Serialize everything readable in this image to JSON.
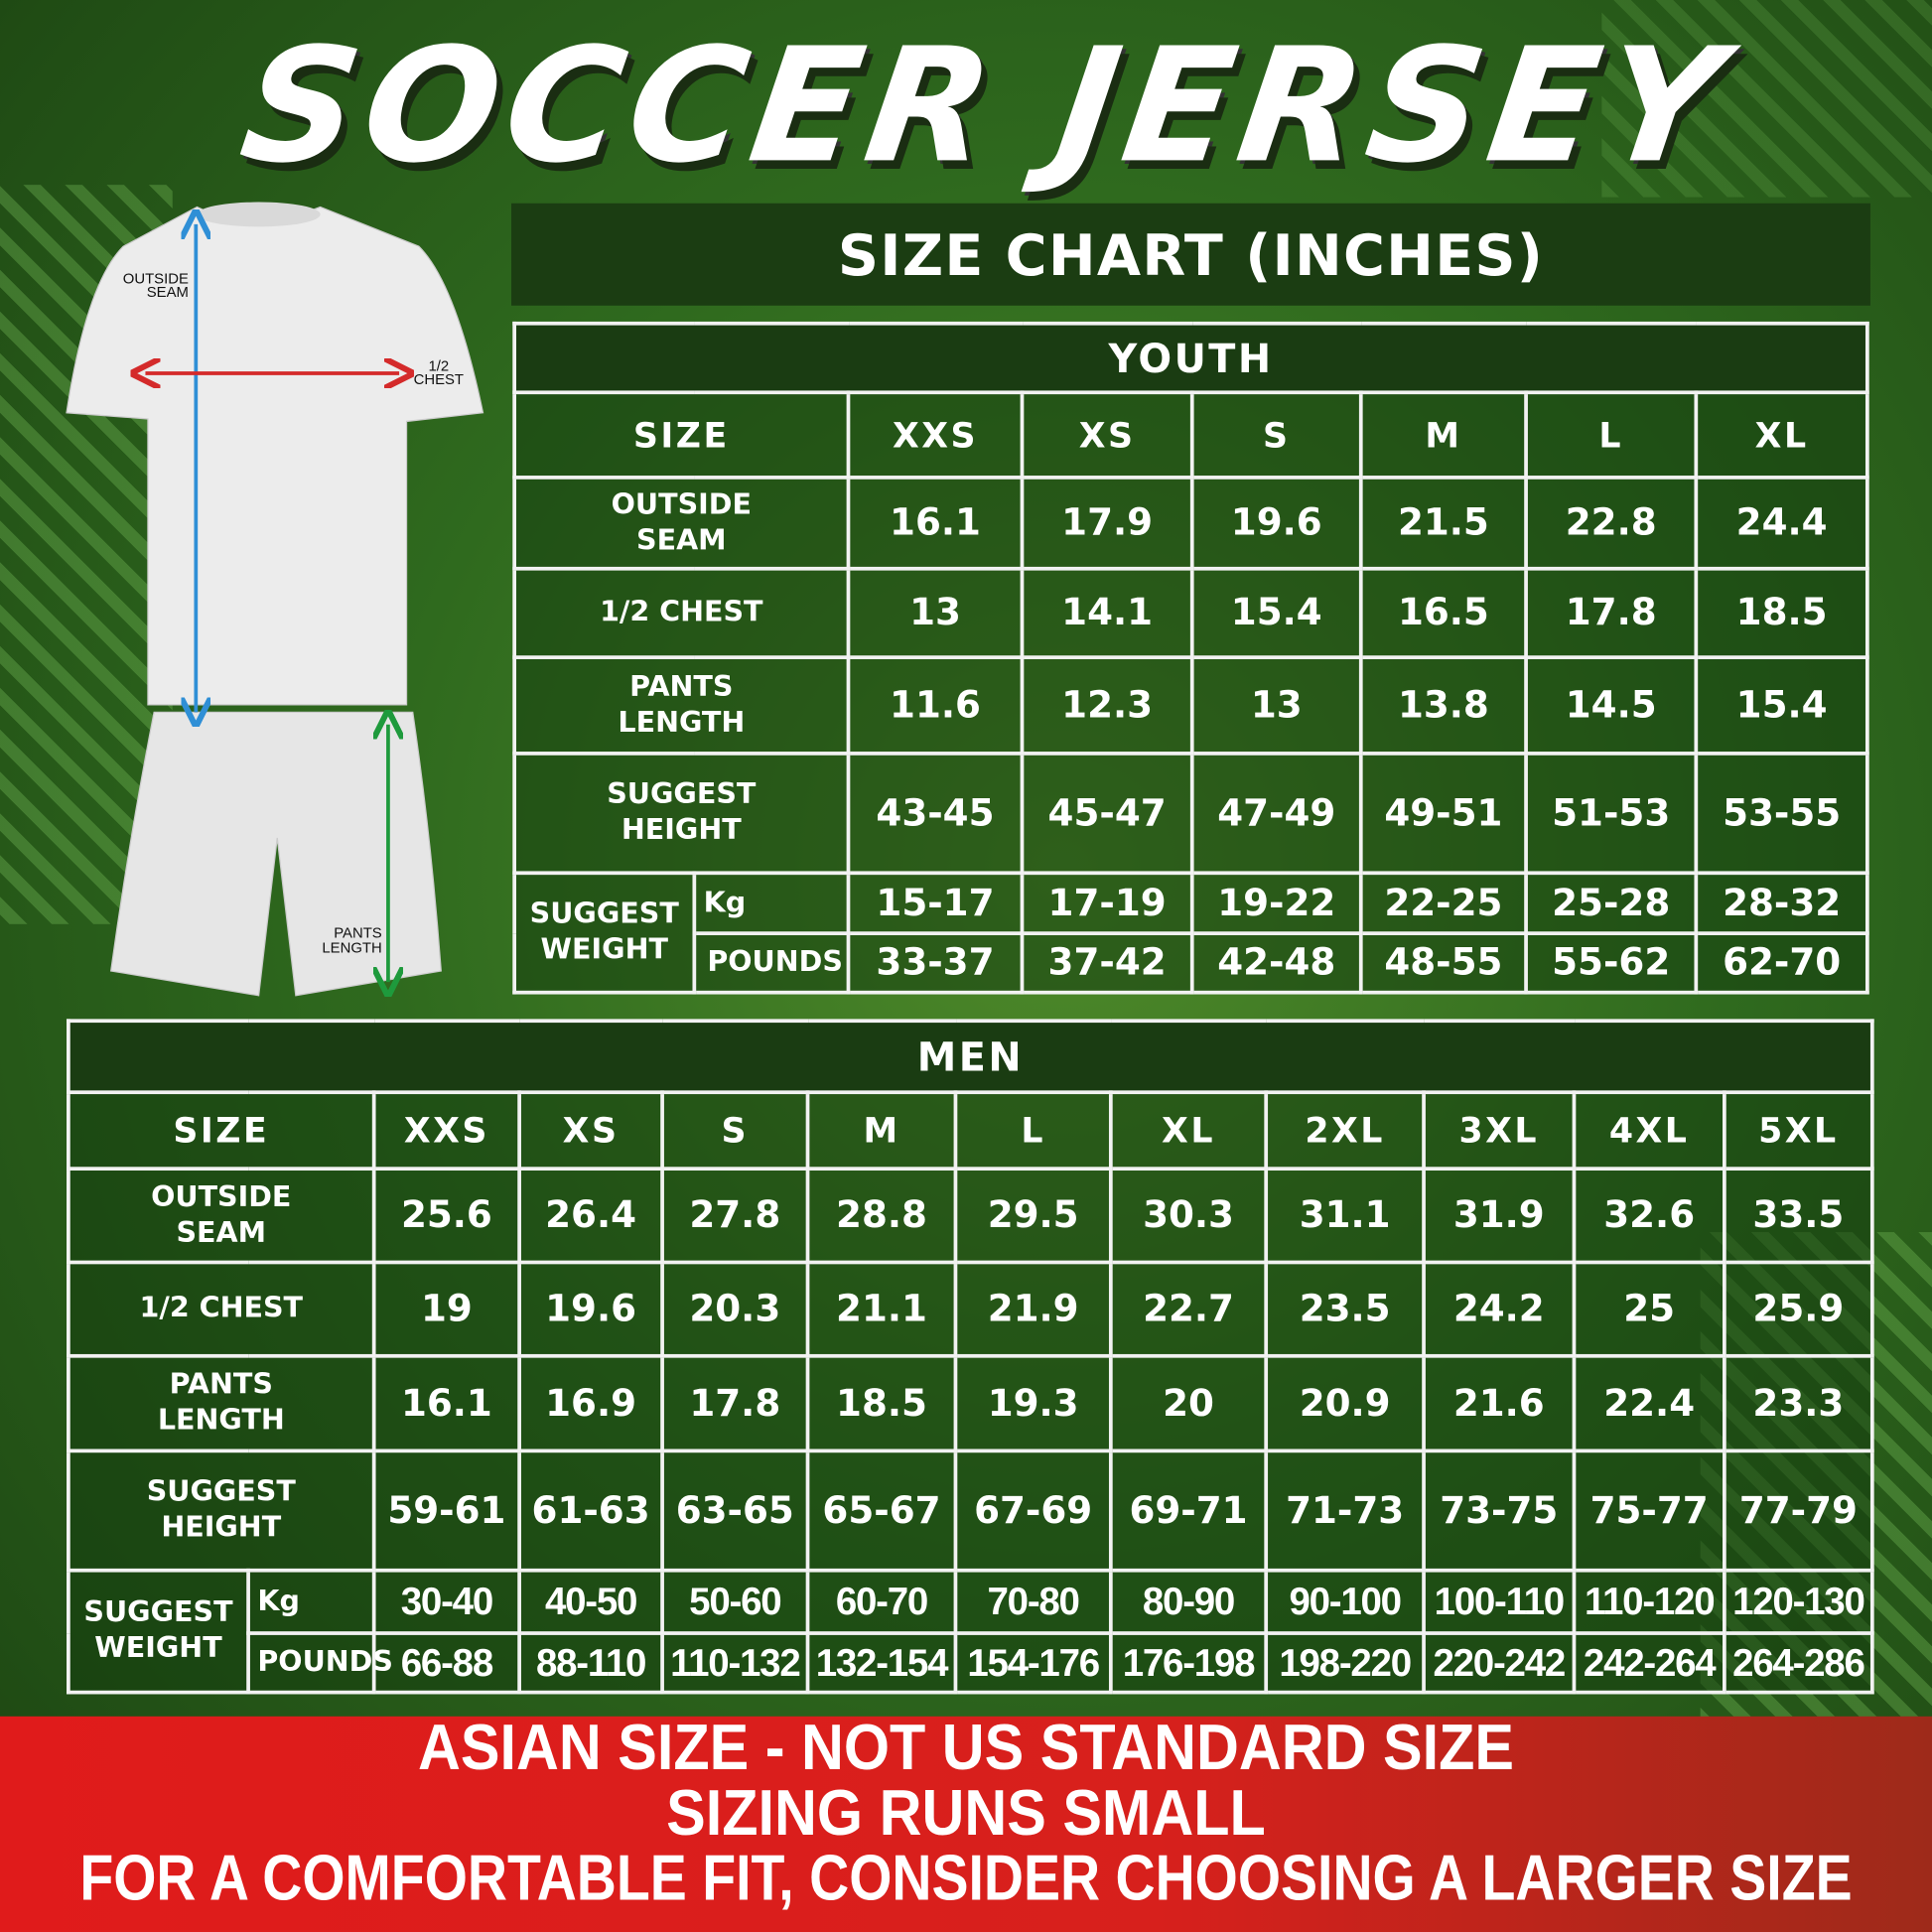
{
  "title": "SOCCER JERSEY",
  "banner": "SIZE CHART (INCHES)",
  "figure": {
    "outside_seam": [
      "OUTSIDE",
      "SEAM"
    ],
    "chest": [
      "1/2",
      "CHEST"
    ],
    "pants": [
      "PANTS",
      "LENGTH"
    ],
    "colors": {
      "outside_seam": "#2f8fd6",
      "chest": "#d42a2a",
      "pants": "#1e9a3c"
    }
  },
  "labels": {
    "size": "SIZE",
    "outside_seam": "OUTSIDE SEAM",
    "chest": "1/2 CHEST",
    "pants": "PANTS LENGTH",
    "height": "SUGGEST HEIGHT",
    "weight": "SUGGEST WEIGHT",
    "kg": "Kg",
    "pounds": "POUNDS"
  },
  "youth": {
    "title": "YOUTH",
    "sizes": [
      "XXS",
      "XS",
      "S",
      "M",
      "L",
      "XL"
    ],
    "outside_seam": [
      "16.1",
      "17.9",
      "19.6",
      "21.5",
      "22.8",
      "24.4"
    ],
    "chest": [
      "13",
      "14.1",
      "15.4",
      "16.5",
      "17.8",
      "18.5"
    ],
    "pants": [
      "11.6",
      "12.3",
      "13",
      "13.8",
      "14.5",
      "15.4"
    ],
    "height": [
      "43-45",
      "45-47",
      "47-49",
      "49-51",
      "51-53",
      "53-55"
    ],
    "kg": [
      "15-17",
      "17-19",
      "19-22",
      "22-25",
      "25-28",
      "28-32"
    ],
    "pounds": [
      "33-37",
      "37-42",
      "42-48",
      "48-55",
      "55-62",
      "62-70"
    ]
  },
  "men": {
    "title": "MEN",
    "sizes": [
      "XXS",
      "XS",
      "S",
      "M",
      "L",
      "XL",
      "2XL",
      "3XL",
      "4XL",
      "5XL"
    ],
    "outside_seam": [
      "25.6",
      "26.4",
      "27.8",
      "28.8",
      "29.5",
      "30.3",
      "31.1",
      "31.9",
      "32.6",
      "33.5"
    ],
    "chest": [
      "19",
      "19.6",
      "20.3",
      "21.1",
      "21.9",
      "22.7",
      "23.5",
      "24.2",
      "25",
      "25.9"
    ],
    "pants": [
      "16.1",
      "16.9",
      "17.8",
      "18.5",
      "19.3",
      "20",
      "20.9",
      "21.6",
      "22.4",
      "23.3"
    ],
    "height": [
      "59-61",
      "61-63",
      "63-65",
      "65-67",
      "67-69",
      "69-71",
      "71-73",
      "73-75",
      "75-77",
      "77-79"
    ],
    "kg": [
      "30-40",
      "40-50",
      "50-60",
      "60-70",
      "70-80",
      "80-90",
      "90-100",
      "100-110",
      "110-120",
      "120-130"
    ],
    "pounds": [
      "66-88",
      "88-110",
      "110-132",
      "132-154",
      "154-176",
      "176-198",
      "198-220",
      "220-242",
      "242-264",
      "264-286"
    ]
  },
  "footer": [
    "ASIAN SIZE - NOT US STANDARD SIZE",
    "SIZING RUNS SMALL",
    "FOR A COMFORTABLE FIT, CONSIDER CHOOSING A LARGER SIZE"
  ],
  "colors": {
    "background": "#2f6a1e",
    "header": "#1b3d12",
    "footer": "#e01b1b",
    "border": "#f2f2f2"
  }
}
